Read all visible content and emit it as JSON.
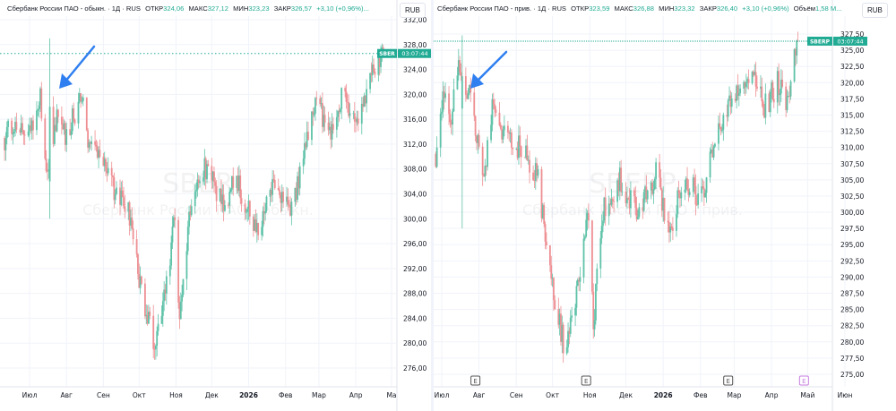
{
  "colors": {
    "up": "#5ec2a8",
    "down": "#ee8f93",
    "accent": "#22ab94",
    "arrow": "#2f7ff0",
    "grid": "#f0f3fa"
  },
  "charts": [
    {
      "id": "left",
      "header": {
        "name": "Сбербанк России ПАО - обыкн.",
        "interval": "1Д",
        "exchange": "RUS",
        "open_label": "ОТКР",
        "open": "324,06",
        "high_label": "МАКС",
        "high": "327,12",
        "low_label": "МИН",
        "low": "323,23",
        "close_label": "ЗАКР",
        "close": "326,57",
        "change": "+3,10 (+0,96%)...",
        "volume_label": "",
        "volume": ""
      },
      "currency": "RUB",
      "watermark": {
        "ticker": "SBER",
        "name": "Сбербанк России ПАО - обыкн."
      },
      "last_price": {
        "ticker": "SBER",
        "timer": "03:07:44",
        "value": 326.57
      },
      "chart_data": {
        "type": "candlestick",
        "y_ticks": [
          "332,00",
          "328,00",
          "324,00",
          "320,00",
          "316,00",
          "312,00",
          "308,00",
          "304,00",
          "300,00",
          "296,00",
          "292,00",
          "288,00",
          "284,00",
          "280,00",
          "276,00"
        ],
        "ylim": [
          274.5,
          333
        ],
        "x_ticks": [
          [
            "2025-07-01",
            "Июл"
          ],
          [
            "2025-08-01",
            "Авг"
          ],
          [
            "2025-09-01",
            "Сен"
          ],
          [
            "2025-10-01",
            "Окт"
          ],
          [
            "2025-11-01",
            "Ноя"
          ],
          [
            "2025-12-01",
            "Дек"
          ],
          [
            "2026-01-01",
            "2026"
          ],
          [
            "2026-02-01",
            "Фев"
          ],
          [
            "2026-03-01",
            "Мар"
          ],
          [
            "2026-04-01",
            "Апр"
          ],
          [
            "2026-05-01",
            "Ма"
          ]
        ],
        "earnings_markers": [],
        "approx_closes": [
          [
            "2025-06-10",
            313
          ],
          [
            "2025-06-20",
            316
          ],
          [
            "2025-06-28",
            311
          ],
          [
            "2025-07-10",
            320
          ],
          [
            "2025-07-16",
            307
          ],
          [
            "2025-07-25",
            318
          ],
          [
            "2025-08-01",
            313
          ],
          [
            "2025-08-13",
            320
          ],
          [
            "2025-08-20",
            312
          ],
          [
            "2025-09-01",
            308
          ],
          [
            "2025-09-24",
            300
          ],
          [
            "2025-10-01",
            290
          ],
          [
            "2025-10-13",
            280
          ],
          [
            "2025-10-20",
            284
          ],
          [
            "2025-10-31",
            300
          ],
          [
            "2025-11-04",
            284
          ],
          [
            "2025-11-15",
            305
          ],
          [
            "2025-11-26",
            308
          ],
          [
            "2025-12-12",
            302
          ],
          [
            "2025-12-20",
            307
          ],
          [
            "2026-01-08",
            298
          ],
          [
            "2026-01-20",
            305
          ],
          [
            "2026-02-08",
            302
          ],
          [
            "2026-02-15",
            310
          ],
          [
            "2026-02-26",
            318
          ],
          [
            "2026-03-13",
            314
          ],
          [
            "2026-03-21",
            320
          ],
          [
            "2026-04-01",
            315
          ],
          [
            "2026-04-12",
            322
          ],
          [
            "2026-04-24",
            326.57
          ]
        ],
        "spike_candle": {
          "date": "2025-07-18",
          "open": 306,
          "high": 329,
          "low": 300,
          "close": 318
        }
      }
    },
    {
      "id": "right",
      "header": {
        "name": "Сбербанк России ПАО - прив.",
        "interval": "1Д",
        "exchange": "RUS",
        "open_label": "ОТКР",
        "open": "323,59",
        "high_label": "МАКС",
        "high": "326,88",
        "low_label": "МИН",
        "low": "323,32",
        "close_label": "ЗАКР",
        "close": "326,40",
        "change": "+3,10 (+0,96%)",
        "volume_label": "Объём",
        "volume": "1,58 M..."
      },
      "currency": "RUB",
      "watermark": {
        "ticker": "SBERP",
        "name": "Сбербанк России ПАО - прив."
      },
      "last_price": {
        "ticker": "SBERP",
        "timer": "03:07:44",
        "value": 326.4
      },
      "chart_data": {
        "type": "candlestick",
        "y_ticks": [
          "327,50",
          "325,00",
          "322,50",
          "320,00",
          "317,50",
          "315,00",
          "312,50",
          "310,00",
          "307,50",
          "305,00",
          "302,50",
          "300,00",
          "297,50",
          "295,00",
          "292,50",
          "290,00",
          "287,50",
          "285,00",
          "282,50",
          "280,00",
          "277,50",
          "275,00"
        ],
        "ylim": [
          273,
          329.5
        ],
        "x_ticks": [
          [
            "2025-07-01",
            "Июл"
          ],
          [
            "2025-08-01",
            "Авг"
          ],
          [
            "2025-09-01",
            "Сен"
          ],
          [
            "2025-10-01",
            "Окт"
          ],
          [
            "2025-11-01",
            "Ноя"
          ],
          [
            "2025-12-01",
            "Дек"
          ],
          [
            "2026-01-01",
            "2026"
          ],
          [
            "2026-02-01",
            "Фев"
          ],
          [
            "2026-03-01",
            "Мар"
          ],
          [
            "2026-04-01",
            "Апр"
          ],
          [
            "2026-05-01",
            "Май"
          ],
          [
            "2026-06-01",
            "Июн"
          ]
        ],
        "earnings_markers": [
          {
            "date": "2025-07-29",
            "label": "E",
            "upcoming": false
          },
          {
            "date": "2025-10-29",
            "label": "E",
            "upcoming": false
          },
          {
            "date": "2026-02-24",
            "label": "E",
            "upcoming": false
          },
          {
            "date": "2026-04-28",
            "label": "E",
            "upcoming": true
          }
        ],
        "approx_closes": [
          [
            "2025-06-26",
            309
          ],
          [
            "2025-07-02",
            318
          ],
          [
            "2025-07-08",
            314
          ],
          [
            "2025-07-15",
            322
          ],
          [
            "2025-07-24",
            318
          ],
          [
            "2025-08-05",
            305
          ],
          [
            "2025-08-13",
            318
          ],
          [
            "2025-08-20",
            312
          ],
          [
            "2025-09-04",
            310
          ],
          [
            "2025-09-19",
            305
          ],
          [
            "2025-09-30",
            290
          ],
          [
            "2025-10-12",
            278
          ],
          [
            "2025-10-24",
            290
          ],
          [
            "2025-10-31",
            300
          ],
          [
            "2025-11-04",
            283
          ],
          [
            "2025-11-12",
            300
          ],
          [
            "2025-11-26",
            305
          ],
          [
            "2025-12-11",
            300
          ],
          [
            "2025-12-26",
            306
          ],
          [
            "2026-01-06",
            297
          ],
          [
            "2026-01-18",
            305
          ],
          [
            "2026-02-02",
            302
          ],
          [
            "2026-02-13",
            312
          ],
          [
            "2026-02-28",
            318
          ],
          [
            "2026-03-15",
            322
          ],
          [
            "2026-03-26",
            316
          ],
          [
            "2026-04-06",
            320
          ],
          [
            "2026-04-14",
            316
          ],
          [
            "2026-04-21",
            325
          ],
          [
            "2026-04-23",
            326.4
          ]
        ],
        "spike_candle": {
          "date": "2025-07-18",
          "open": 316,
          "high": 327.3,
          "low": 297.5,
          "close": 321
        }
      }
    }
  ]
}
